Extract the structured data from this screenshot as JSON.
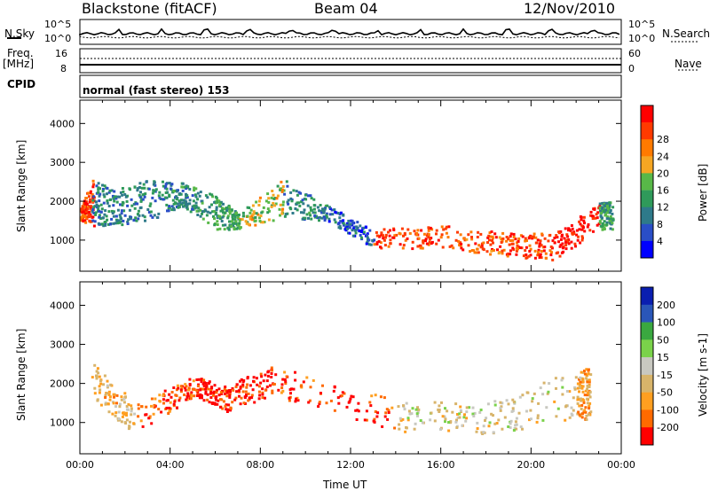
{
  "header": {
    "station": "Blackstone (fitACF)",
    "beam": "Beam 04",
    "date": "12/Nov/2010"
  },
  "strip": {
    "nsky_label": "N.Sky",
    "nsky_ticks": [
      "10^5",
      "10^0"
    ],
    "nsearch_label": "N.Search",
    "freq_label": "Freq.",
    "freq_unit": "[MHz]",
    "freq_ticks": [
      "16",
      "8"
    ],
    "nave_label": "Nave",
    "nave_ticks": [
      "60",
      "0"
    ],
    "cpid_label": "CPID",
    "cpid_text": "normal (fast stereo) 153"
  },
  "colors": {
    "power": [
      "#0000ff",
      "#2a4ec7",
      "#2e7a8a",
      "#2f9a5a",
      "#58b848",
      "#f5a623",
      "#ff7a00",
      "#ff3a00",
      "#ff0000"
    ],
    "velocity": [
      "#ff0000",
      "#ff6a00",
      "#ff9f20",
      "#d8b46a",
      "#c8c8c0",
      "#7ad24a",
      "#3aa840",
      "#2a56b8",
      "#0a1eb0"
    ]
  },
  "chart_data": [
    {
      "type": "heatmap",
      "name": "power",
      "ylabel": "Slant Range [km]",
      "xlabel": "",
      "x_ticks": [
        "00:00",
        "04:00",
        "08:00",
        "12:00",
        "16:00",
        "20:00",
        "00:00"
      ],
      "y_ticks": [
        1000,
        2000,
        3000,
        4000
      ],
      "xlim_hours": [
        0,
        24
      ],
      "ylim_km": [
        200,
        4600
      ],
      "colorbar": {
        "label": "Power [dB]",
        "ticks": [
          4,
          8,
          12,
          16,
          20,
          24,
          28
        ]
      },
      "bands": [
        {
          "t": 0.0,
          "lo": 1500,
          "hi": 1800,
          "v": 0.85
        },
        {
          "t": 0.5,
          "lo": 1400,
          "hi": 2600,
          "v": 0.3
        },
        {
          "t": 1.5,
          "lo": 1400,
          "hi": 2300,
          "v": 0.3
        },
        {
          "t": 3.0,
          "lo": 1500,
          "hi": 2600,
          "v": 0.3
        },
        {
          "t": 4.5,
          "lo": 1900,
          "hi": 2500,
          "v": 0.35
        },
        {
          "t": 6.0,
          "lo": 1300,
          "hi": 2200,
          "v": 0.4
        },
        {
          "t": 7.0,
          "lo": 1300,
          "hi": 1700,
          "v": 0.55
        },
        {
          "t": 9.0,
          "lo": 1600,
          "hi": 2600,
          "v": 0.3
        },
        {
          "t": 11.0,
          "lo": 1500,
          "hi": 1900,
          "v": 0.2
        },
        {
          "t": 13.0,
          "lo": 800,
          "hi": 1300,
          "v": 0.85
        },
        {
          "t": 16.0,
          "lo": 800,
          "hi": 1400,
          "v": 0.8
        },
        {
          "t": 19.0,
          "lo": 600,
          "hi": 1200,
          "v": 0.85
        },
        {
          "t": 21.0,
          "lo": 500,
          "hi": 1200,
          "v": 0.95
        },
        {
          "t": 23.0,
          "lo": 1300,
          "hi": 2000,
          "v": 0.4
        }
      ]
    },
    {
      "type": "heatmap",
      "name": "velocity",
      "ylabel": "Slant Range [km]",
      "xlabel": "Time UT",
      "x_ticks": [
        "00:00",
        "04:00",
        "08:00",
        "12:00",
        "16:00",
        "20:00",
        "00:00"
      ],
      "y_ticks": [
        1000,
        2000,
        3000,
        4000
      ],
      "xlim_hours": [
        0,
        24
      ],
      "ylim_km": [
        200,
        4600
      ],
      "colorbar": {
        "label": "Velocity [m s-1]",
        "ticks": [
          200,
          100,
          50,
          15,
          -15,
          -50,
          -100,
          -200
        ]
      },
      "bands": [
        {
          "t": 0.5,
          "lo": 1600,
          "hi": 2600,
          "v": 0.35
        },
        {
          "t": 2.5,
          "lo": 700,
          "hi": 1500,
          "v": 0.15
        },
        {
          "t": 5.0,
          "lo": 1700,
          "hi": 2200,
          "v": 0.05
        },
        {
          "t": 6.5,
          "lo": 1300,
          "hi": 2000,
          "v": 0.05
        },
        {
          "t": 8.5,
          "lo": 1700,
          "hi": 2500,
          "v": 0.1
        },
        {
          "t": 14.0,
          "lo": 800,
          "hi": 1600,
          "v": 0.45
        },
        {
          "t": 18.0,
          "lo": 700,
          "hi": 1500,
          "v": 0.45
        },
        {
          "t": 22.0,
          "lo": 1100,
          "hi": 2400,
          "v": 0.3
        }
      ]
    }
  ],
  "time_axis_label": "Time UT"
}
